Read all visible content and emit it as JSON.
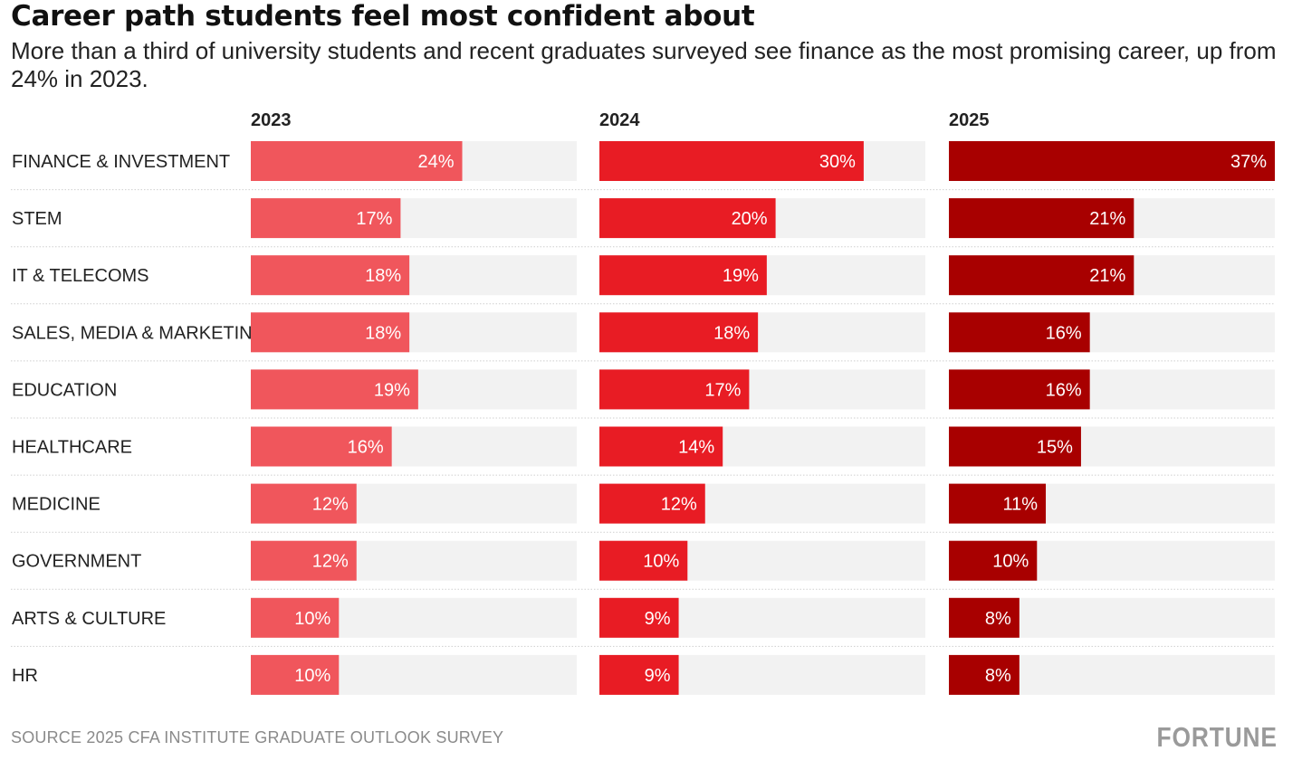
{
  "title": "Career path students feel most confident about",
  "subtitle": "More than a third of university students and recent graduates surveyed see finance as the most promising career, up from 24% in 2023.",
  "source": "SOURCE 2025 CFA INSTITUTE GRADUATE OUTLOOK SURVEY",
  "brand": "FORTUNE",
  "colors": {
    "panel_bg": "#f2f2f2",
    "divider": "#cfcfcf",
    "bar_label": "#ffffff",
    "series": [
      "#f0565c",
      "#e81c24",
      "#a80000"
    ]
  },
  "chart_data": {
    "type": "bar",
    "orientation": "horizontal",
    "layout": "small-multiples",
    "xlim": [
      0,
      37
    ],
    "value_suffix": "%",
    "categories": [
      "FINANCE & INVESTMENT",
      "STEM",
      "IT & TELECOMS",
      "SALES, MEDIA & MARKETING",
      "EDUCATION",
      "HEALTHCARE",
      "MEDICINE",
      "GOVERNMENT",
      "ARTS & CULTURE",
      "HR"
    ],
    "series": [
      {
        "name": "2023",
        "values": [
          24,
          17,
          18,
          18,
          19,
          16,
          12,
          12,
          10,
          10
        ]
      },
      {
        "name": "2024",
        "values": [
          30,
          20,
          19,
          18,
          17,
          14,
          12,
          10,
          9,
          9
        ]
      },
      {
        "name": "2025",
        "values": [
          37,
          21,
          21,
          16,
          16,
          15,
          11,
          10,
          8,
          8
        ]
      }
    ]
  }
}
